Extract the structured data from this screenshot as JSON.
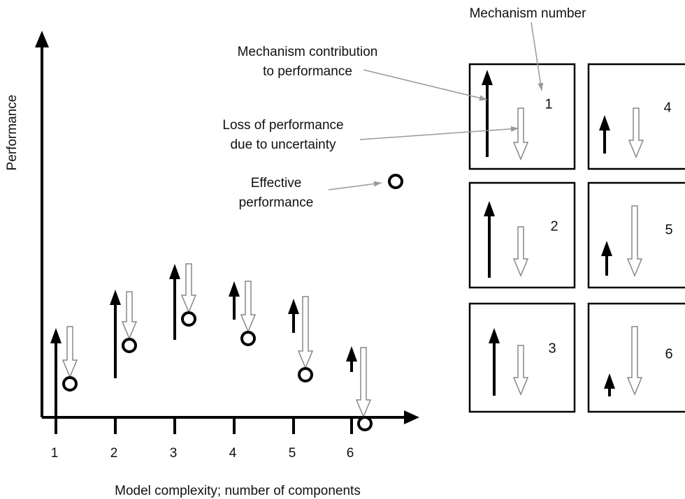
{
  "y_axis_label": "Performance",
  "x_axis_label": "Model complexity; number of components",
  "x_ticks": [
    "1",
    "2",
    "3",
    "4",
    "5",
    "6"
  ],
  "annotations": {
    "mechanism_number": "Mechanism number",
    "contribution": [
      "Mechanism contribution",
      "to performance"
    ],
    "loss": [
      "Loss of performance",
      "due to uncertainty"
    ],
    "effective": [
      "Effective",
      "performance"
    ]
  },
  "boxes": [
    "1",
    "2",
    "3",
    "4",
    "5",
    "6"
  ]
}
